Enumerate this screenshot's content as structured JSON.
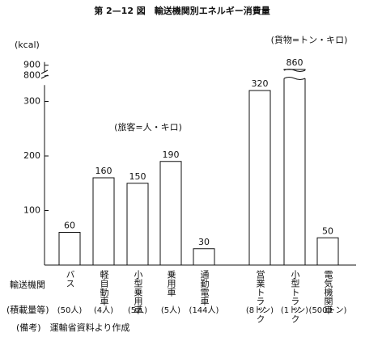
{
  "chart_data": {
    "type": "bar",
    "title": "第 2—12 図　輸送機関別エネルギー消費量",
    "y_label": "(kcal)",
    "annotations": [
      "(旅客=人・キロ)",
      "(貨物=トン・キロ)"
    ],
    "row_labels": [
      "輸送機関",
      "(積載量等)"
    ],
    "note": "(備考)　運輸省資料より作成",
    "categories": [
      "バス",
      "軽自動車",
      "小型乗用車",
      "乗用車",
      "通勤電車",
      "営業トラック",
      "小型トラック",
      "電気機関車"
    ],
    "capacities": [
      "(50人)",
      "(4人)",
      "(5人)",
      "(5人)",
      "(144人)",
      "(8トン)",
      "(1トン)",
      "(500トン)"
    ],
    "values": [
      60,
      160,
      150,
      190,
      30,
      320,
      860,
      50
    ],
    "color": "#ffffff",
    "ylim": [
      0,
      930
    ],
    "axis_break": [
      330,
      790
    ],
    "yticks": [
      100,
      200,
      300,
      800,
      900
    ]
  }
}
